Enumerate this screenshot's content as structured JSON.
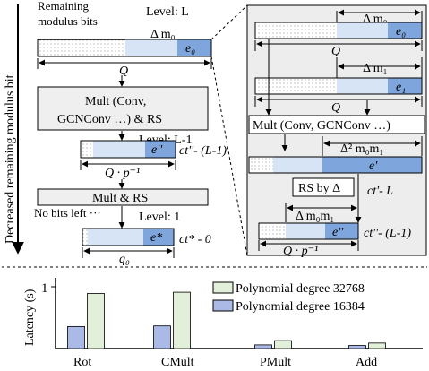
{
  "left": {
    "side_label": "Decreased remaining modulus bit",
    "remaining_label_1": "Remaining",
    "remaining_label_2": "modulus bits",
    "level_top": "Level: L",
    "delta_top": "Δ m₀",
    "e0": "e₀",
    "q_top": "Q",
    "box1_line1": "Mult (Conv,",
    "box1_line2": "GCNConv …) & RS",
    "level_mid": "Level: L-1",
    "e_double_prime": "e''",
    "ct_mid": "ct''- (L-1)",
    "q_mid": "Q · p⁻¹",
    "box2": "Mult & RS",
    "no_bits": "No bits left ···",
    "level_bottom": "Level: 1",
    "e_star": "e*",
    "ct_bottom": "ct* - 0",
    "q0": "q₀"
  },
  "right": {
    "delta_m0": "Δ m₀",
    "e0": "e₀",
    "q1": "Q",
    "delta_m1": "Δ m₁",
    "e1": "e₁",
    "q2": "Q",
    "mult_box": "Mult (Conv, GCNConv …)",
    "delta2": "Δ² m₀m₁",
    "e_prime": "e'",
    "rs_box": "RS by Δ",
    "ct_prime": "ct'- L",
    "delta_m0m1": "Δ m₀m₁",
    "e_dprime": "e''",
    "ct_dprime": "ct''- (L-1)",
    "q_p": "Q · p⁻¹"
  },
  "colors": {
    "light_blue": "#d6e4f5",
    "mid_blue": "#7ea6dc",
    "box_gray": "#efefef",
    "bar_green": "#e2f0d9",
    "bar_blue": "#aab9e6"
  },
  "chart_data": {
    "type": "bar",
    "ylabel": "Latency (s)",
    "y_tick": "1",
    "categories": [
      "Rot",
      "CMult",
      "PMult",
      "Add"
    ],
    "series": [
      {
        "name": "Polynomial degree 32768",
        "color": "#e2f0d9",
        "values": [
          0.9,
          0.92,
          0.13,
          0.09
        ]
      },
      {
        "name": "Polynomial degree 16384",
        "color": "#aab9e6",
        "values": [
          0.36,
          0.37,
          0.06,
          0.05
        ]
      }
    ],
    "ylim": [
      0,
      1.17
    ]
  }
}
